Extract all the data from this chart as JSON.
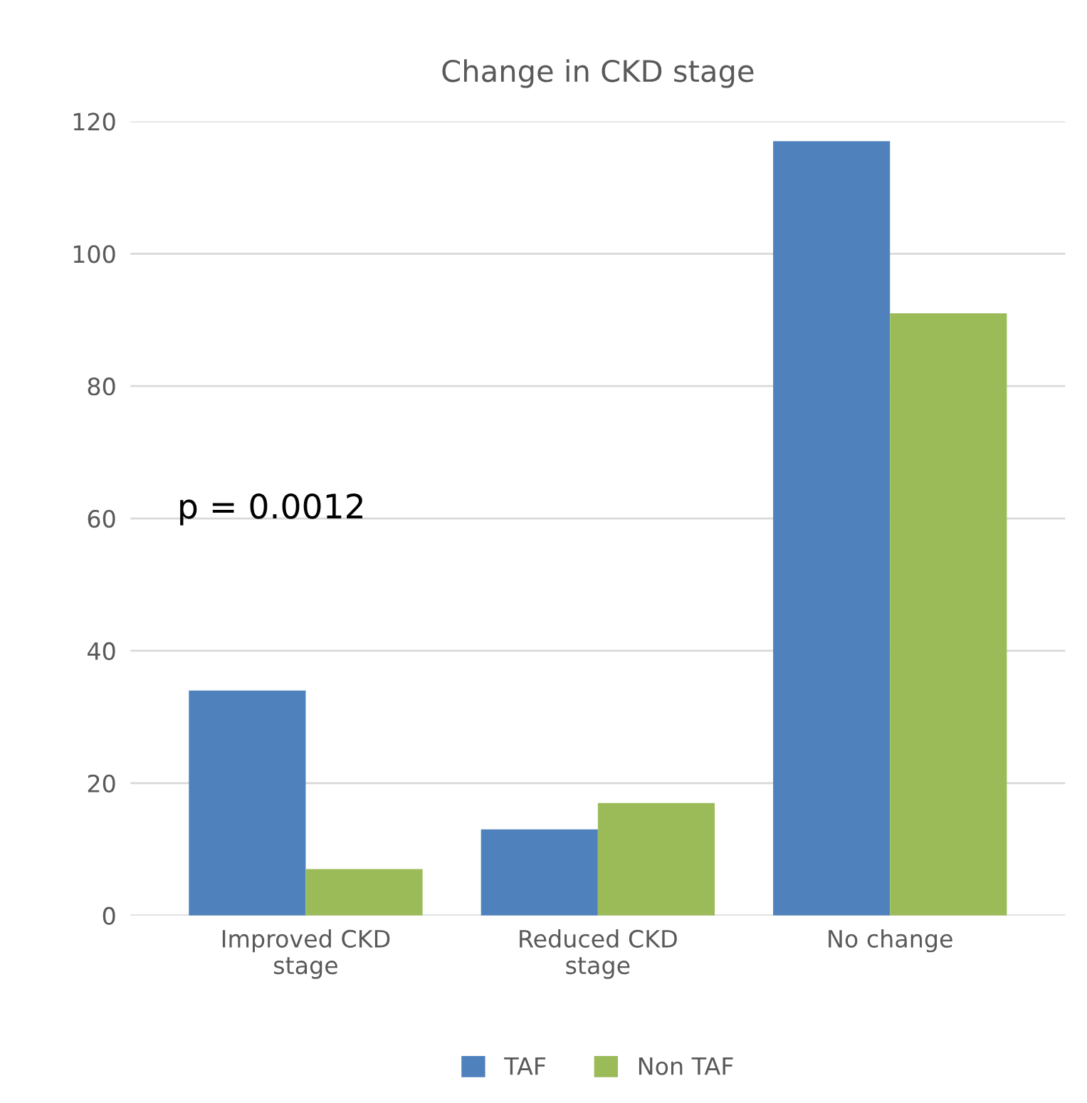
{
  "chart_data": {
    "type": "bar",
    "title": "Change in CKD stage",
    "categories": [
      "Improved CKD\nstage",
      "Reduced CKD\nstage",
      "No change"
    ],
    "series": [
      {
        "name": "TAF",
        "color": "#4f81bd",
        "values": [
          34,
          13,
          117
        ]
      },
      {
        "name": "Non TAF",
        "color": "#9bbb59",
        "values": [
          7,
          17,
          91
        ]
      }
    ],
    "ylim": [
      0,
      120
    ],
    "yticks": [
      0,
      20,
      40,
      60,
      80,
      100,
      120
    ],
    "grid": "y",
    "legend": "bottom",
    "annotations": [
      "p = 0.0012"
    ]
  }
}
